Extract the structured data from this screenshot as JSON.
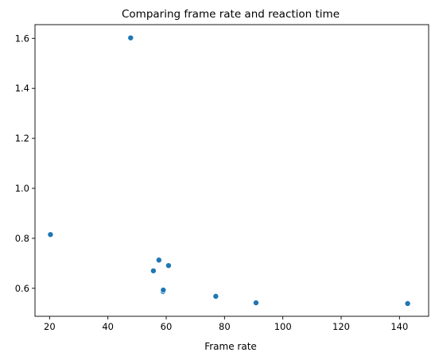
{
  "chart_data": {
    "type": "scatter",
    "title": "Comparing frame rate and reaction time",
    "xlabel": "Frame rate",
    "ylabel": "",
    "xlim": [
      15,
      150
    ],
    "ylim": [
      0.488,
      1.655
    ],
    "xticks": [
      20,
      40,
      60,
      80,
      100,
      120,
      140
    ],
    "yticks": [
      0.6,
      0.8,
      1.0,
      1.2,
      1.4,
      1.6
    ],
    "ytick_labels": [
      "0.6",
      "0.8",
      "1.0",
      "1.2",
      "1.4",
      "1.6"
    ],
    "grid": false,
    "marker_color": "#1f77b4",
    "points": [
      {
        "x": 20.3,
        "y": 0.815
      },
      {
        "x": 47.8,
        "y": 1.602
      },
      {
        "x": 55.6,
        "y": 0.67
      },
      {
        "x": 57.5,
        "y": 0.713
      },
      {
        "x": 58.9,
        "y": 0.587
      },
      {
        "x": 59.0,
        "y": 0.593
      },
      {
        "x": 60.8,
        "y": 0.691
      },
      {
        "x": 77.0,
        "y": 0.568
      },
      {
        "x": 90.8,
        "y": 0.542
      },
      {
        "x": 142.8,
        "y": 0.539
      }
    ]
  }
}
